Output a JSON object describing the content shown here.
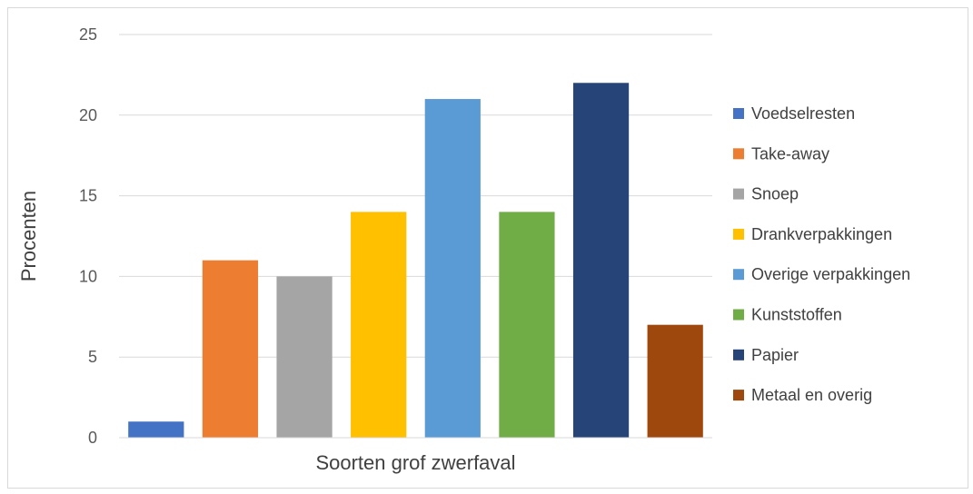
{
  "chart_data": {
    "type": "bar",
    "categories": [
      "Voedselresten",
      "Take-away",
      "Snoep",
      "Drankverpakkingen",
      "Overige verpakkingen",
      "Kunststoffen",
      "Papier",
      "Metaal en overig"
    ],
    "values": [
      1,
      11,
      10,
      14,
      21,
      14,
      22,
      7
    ],
    "colors": [
      "#4472c4",
      "#ed7d31",
      "#a5a5a5",
      "#ffc000",
      "#5b9bd5",
      "#70ad47",
      "#264478",
      "#9e480e"
    ],
    "xlabel": "Soorten grof zwerfaval",
    "ylabel": "Procenten",
    "ylim": [
      0,
      25
    ],
    "yticks": [
      0,
      5,
      10,
      15,
      20,
      25
    ],
    "grid": true,
    "legend_position": "right"
  }
}
